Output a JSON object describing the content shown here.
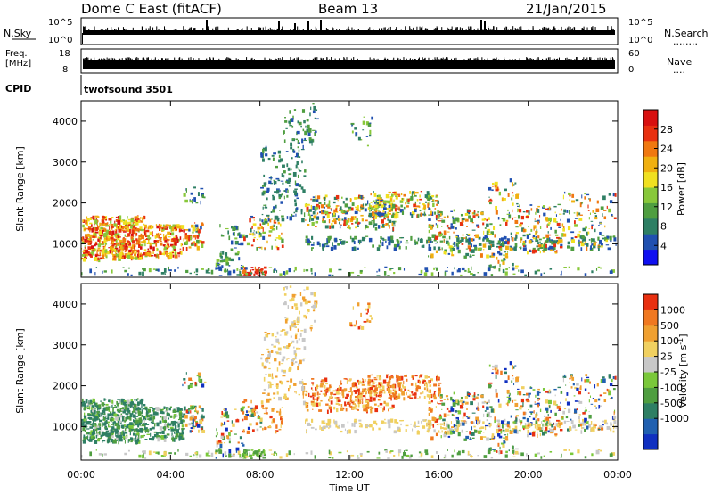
{
  "header": {
    "title": "Dome C East (fitACF)",
    "beam": "Beam 13",
    "date": "21/Jan/2015"
  },
  "aux_panels": {
    "nsky_label": "N.Sky",
    "nsky_top": "10^5",
    "nsky_bottom": "10^0",
    "nsearch_label": "N.Search",
    "nsearch_dots": "........",
    "nsearch_top": "10^5",
    "nsearch_bottom": "10^0",
    "freq_label_1": "Freq.",
    "freq_label_2": "[MHz]",
    "freq_top": "18",
    "freq_bottom": "8",
    "nave_label": "Nave",
    "nave_dots": "....",
    "nave_top": "60",
    "nave_bottom": "0",
    "cpid_label": "CPID",
    "cpid_value": "twofsound 3501"
  },
  "chart_data": [
    {
      "type": "heatmap",
      "quantity": "Power",
      "ylabel": "Slant Range [km]",
      "yticks": [
        "1000",
        "2000",
        "3000",
        "4000"
      ],
      "ylim": [
        180,
        4500
      ],
      "colorbar_label": "Power [dB]",
      "colorbar_ticks": [
        "4",
        "8",
        "12",
        "16",
        "20",
        "24",
        "28"
      ],
      "colorbar_colors": [
        "#1010f0",
        "#2050b0",
        "#2e7f64",
        "#4f9e40",
        "#88c83a",
        "#f0e020",
        "#f0b010",
        "#f07810",
        "#e83010",
        "#d81010"
      ],
      "xlim": [
        0,
        24
      ]
    },
    {
      "type": "heatmap",
      "quantity": "Velocity",
      "ylabel": "Slant Range [km]",
      "yticks": [
        "1000",
        "2000",
        "3000",
        "4000"
      ],
      "ylim": [
        180,
        4500
      ],
      "colorbar_label": "Velocity [m s",
      "colorbar_label_sup": "-1",
      "colorbar_label_end": "]",
      "colorbar_ticks": [
        "1000",
        "500",
        "100",
        "25",
        "-25",
        "-100",
        "-500",
        "-1000"
      ],
      "colorbar_colors": [
        "#1030c0",
        "#2060b0",
        "#2e7f64",
        "#4f9e40",
        "#7ac83a",
        "#c8c8c8",
        "#f0d060",
        "#f0a030",
        "#f07820",
        "#e83010"
      ],
      "xlim": [
        0,
        24
      ]
    }
  ],
  "xaxis": {
    "label": "Time UT",
    "ticks": [
      "00:00",
      "04:00",
      "08:00",
      "12:00",
      "16:00",
      "20:00",
      "00:00"
    ]
  }
}
